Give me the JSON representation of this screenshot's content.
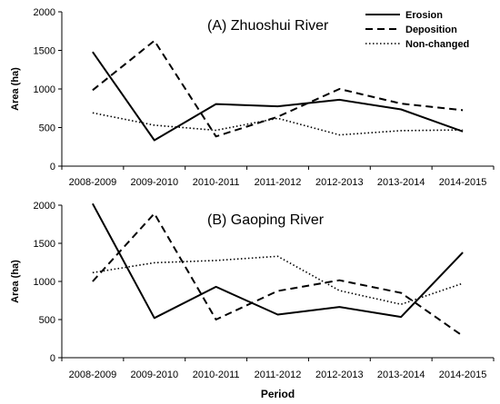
{
  "chart_data": [
    {
      "type": "line",
      "title": "(A) Zhuoshui River",
      "xlabel": "",
      "ylabel": "Area (ha)",
      "categories": [
        "2008-2009",
        "2009-2010",
        "2010-2011",
        "2011-2012",
        "2012-2013",
        "2013-2014",
        "2014-2015"
      ],
      "ylim": [
        0,
        2000
      ],
      "yticks": [
        0,
        500,
        1000,
        1500,
        2000
      ],
      "legend": "top-right",
      "series": [
        {
          "name": "Erosion",
          "style": "solid",
          "color": "#000000",
          "values": [
            1480,
            335,
            805,
            775,
            860,
            735,
            450
          ]
        },
        {
          "name": "Deposition",
          "style": "dashed",
          "color": "#000000",
          "values": [
            985,
            1625,
            385,
            640,
            1000,
            810,
            725
          ]
        },
        {
          "name": "Non-changed",
          "style": "dotted",
          "color": "#000000",
          "values": [
            690,
            530,
            465,
            620,
            405,
            460,
            470
          ]
        }
      ]
    },
    {
      "type": "line",
      "title": "(B) Gaoping River",
      "xlabel": "Period",
      "ylabel": "Area (ha)",
      "categories": [
        "2008-2009",
        "2009-2010",
        "2010-2011",
        "2011-2012",
        "2012-2013",
        "2013-2014",
        "2014-2015"
      ],
      "ylim": [
        0,
        2000
      ],
      "yticks": [
        0,
        500,
        1000,
        1500,
        2000
      ],
      "series": [
        {
          "name": "Erosion",
          "style": "solid",
          "color": "#000000",
          "values": [
            2020,
            520,
            930,
            565,
            665,
            535,
            1380
          ]
        },
        {
          "name": "Deposition",
          "style": "dashed",
          "color": "#000000",
          "values": [
            1000,
            1890,
            500,
            875,
            1015,
            850,
            285
          ]
        },
        {
          "name": "Non-changed",
          "style": "dotted",
          "color": "#000000",
          "values": [
            1115,
            1245,
            1275,
            1330,
            880,
            700,
            975
          ]
        }
      ]
    }
  ]
}
